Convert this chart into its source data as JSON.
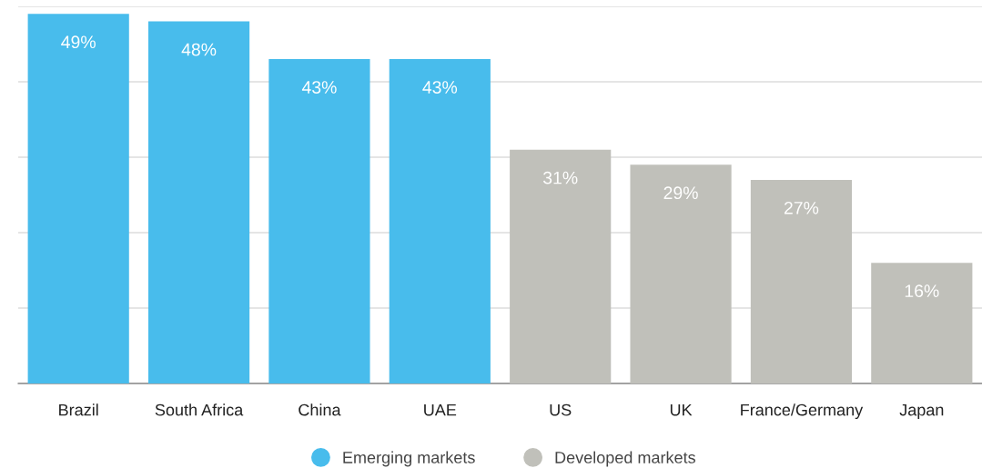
{
  "chart_data": {
    "type": "bar",
    "categories": [
      "Brazil",
      "South Africa",
      "China",
      "UAE",
      "US",
      "UK",
      "France/Germany",
      "Japan"
    ],
    "series": [
      {
        "name": "Emerging markets",
        "color": "#48bcec",
        "values": [
          49,
          48,
          43,
          43,
          null,
          null,
          null,
          null
        ],
        "value_labels": [
          "49%",
          "48%",
          "43%",
          "43%",
          null,
          null,
          null,
          null
        ]
      },
      {
        "name": "Developed markets",
        "color": "#c0c0ba",
        "values": [
          null,
          null,
          null,
          null,
          31,
          29,
          27,
          16
        ],
        "value_labels": [
          null,
          null,
          null,
          null,
          "31%",
          "29%",
          "27%",
          "16%"
        ]
      }
    ],
    "ylim": [
      0,
      50
    ],
    "yticks": [
      {
        "value": 0,
        "label": null
      },
      {
        "value": 10,
        "label": null
      },
      {
        "value": 20,
        "label": null
      },
      {
        "value": 30,
        "label": null
      },
      {
        "value": 40,
        "label": null
      },
      {
        "value": 50,
        "label": null
      }
    ],
    "grid": "y",
    "legend": "bottom"
  }
}
